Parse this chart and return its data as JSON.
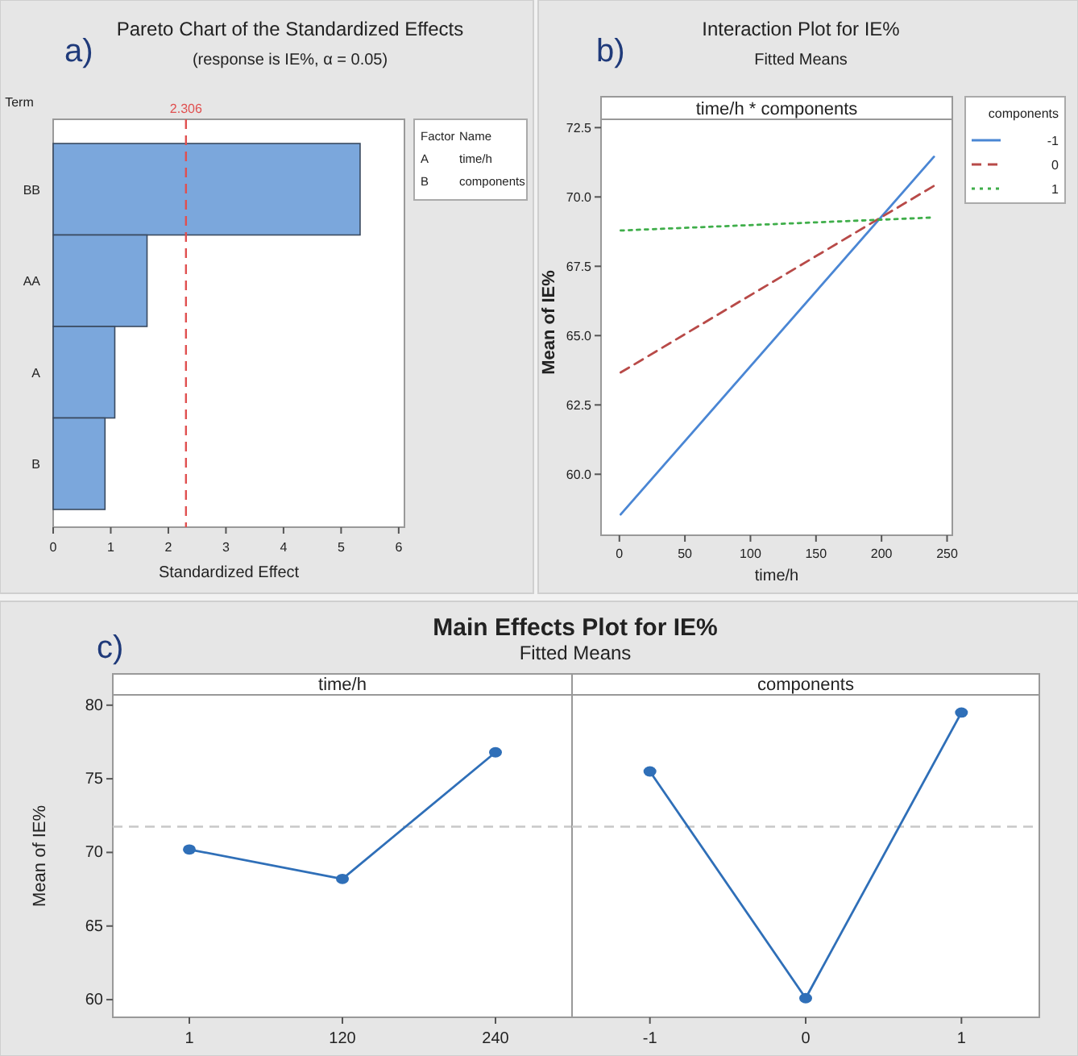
{
  "chart_data": [
    {
      "type": "bar",
      "orientation": "horizontal",
      "title": "Pareto Chart of the Standardized Effects",
      "subtitle": "(response is IE%, α = 0.05)",
      "xlabel": "Standardized Effect",
      "ylabel": "Term",
      "categories": [
        "BB",
        "AA",
        "A",
        "B"
      ],
      "values": [
        5.33,
        1.63,
        1.07,
        0.9
      ],
      "color": "#7ba7dc",
      "xlim": [
        0,
        6.1
      ],
      "xticks": [
        0,
        1,
        2,
        3,
        4,
        5,
        6
      ],
      "ref_lines": [
        {
          "axis": "x",
          "value": 2.306,
          "label": "2.306",
          "color": "#e05050",
          "line_style": "dashed"
        }
      ],
      "annotations": [
        "a)",
        "Factor",
        "Name",
        "A",
        "time/h",
        "B",
        "components"
      ]
    },
    {
      "type": "line",
      "title": "Interaction Plot for IE%",
      "subtitle": "Fitted Means",
      "xlabel": "time/h",
      "ylabel": "Mean of IE%",
      "legend_title": "components",
      "x": [
        1,
        240
      ],
      "series": [
        {
          "name": "-1",
          "color": "#4a86d4",
          "values": [
            58.55,
            71.45
          ],
          "line_style": "solid"
        },
        {
          "name": "0",
          "color": "#b84a48",
          "values": [
            63.67,
            70.4
          ],
          "line_style": "dashed"
        },
        {
          "name": "1",
          "color": "#3fae4a",
          "values": [
            68.79,
            69.26
          ],
          "line_style": "dotted"
        }
      ],
      "xlim": [
        -14,
        254
      ],
      "xticks": [
        0,
        50,
        100,
        150,
        200,
        250
      ],
      "ylim": [
        57.8,
        72.8
      ],
      "yticks": [
        {
          "value": 60,
          "label": "60.0"
        },
        {
          "value": 62.5,
          "label": "62.5"
        },
        {
          "value": 65,
          "label": "65.0"
        },
        {
          "value": 67.5,
          "label": "67.5"
        },
        {
          "value": 70,
          "label": "70.0"
        },
        {
          "value": 72.5,
          "label": "72.5"
        }
      ],
      "legend": "right",
      "marker": "none",
      "annotations": [
        "b)",
        "time/h * components"
      ]
    },
    {
      "type": "line",
      "title": "Main Effects Plot for IE%",
      "subtitle": "Fitted Means",
      "ylabel": "Mean of IE%",
      "categories": [
        "1",
        "120",
        "240"
      ],
      "values": [
        70.2,
        68.2,
        76.8
      ],
      "color": "#2f6fb8",
      "marker": "circle",
      "ylim": [
        58.8,
        80.7
      ],
      "yticks": [
        60,
        65,
        70,
        75,
        80
      ],
      "ref_lines": [
        {
          "axis": "y",
          "value": 71.75,
          "color": "#c8c8c8",
          "line_style": "dashed"
        }
      ],
      "annotations": [
        "c)",
        "time/h"
      ]
    },
    {
      "type": "line",
      "categories": [
        "-1",
        "0",
        "1"
      ],
      "values": [
        75.5,
        60.1,
        79.5
      ],
      "color": "#2f6fb8",
      "marker": "circle",
      "ylim": [
        58.8,
        80.7
      ],
      "tick_labels": "x",
      "ref_lines": [
        {
          "axis": "y",
          "value": 71.75,
          "color": "#c8c8c8",
          "line_style": "dashed"
        }
      ],
      "annotations": [
        "components"
      ]
    }
  ]
}
